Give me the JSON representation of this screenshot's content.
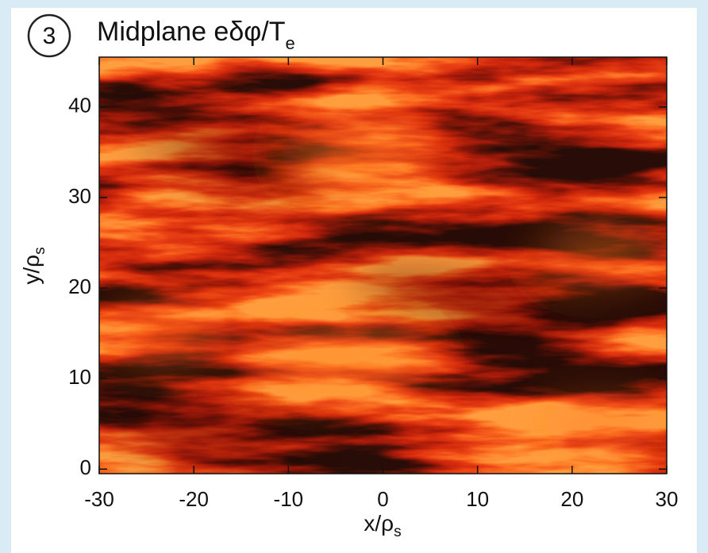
{
  "chart_data": {
    "type": "heatmap",
    "badge": "3",
    "title": "Midplane eδφ/T",
    "title_subscript": "e",
    "xlabel": "x/ρ",
    "xlabel_subscript": "s",
    "ylabel": "y/ρ",
    "ylabel_subscript": "s",
    "xlim": [
      -30,
      30
    ],
    "xticks": [
      -30,
      -20,
      -10,
      0,
      10,
      20,
      30
    ],
    "ylim": [
      -0.5,
      45.5
    ],
    "yticks": [
      0,
      10,
      20,
      30,
      40
    ]
  }
}
